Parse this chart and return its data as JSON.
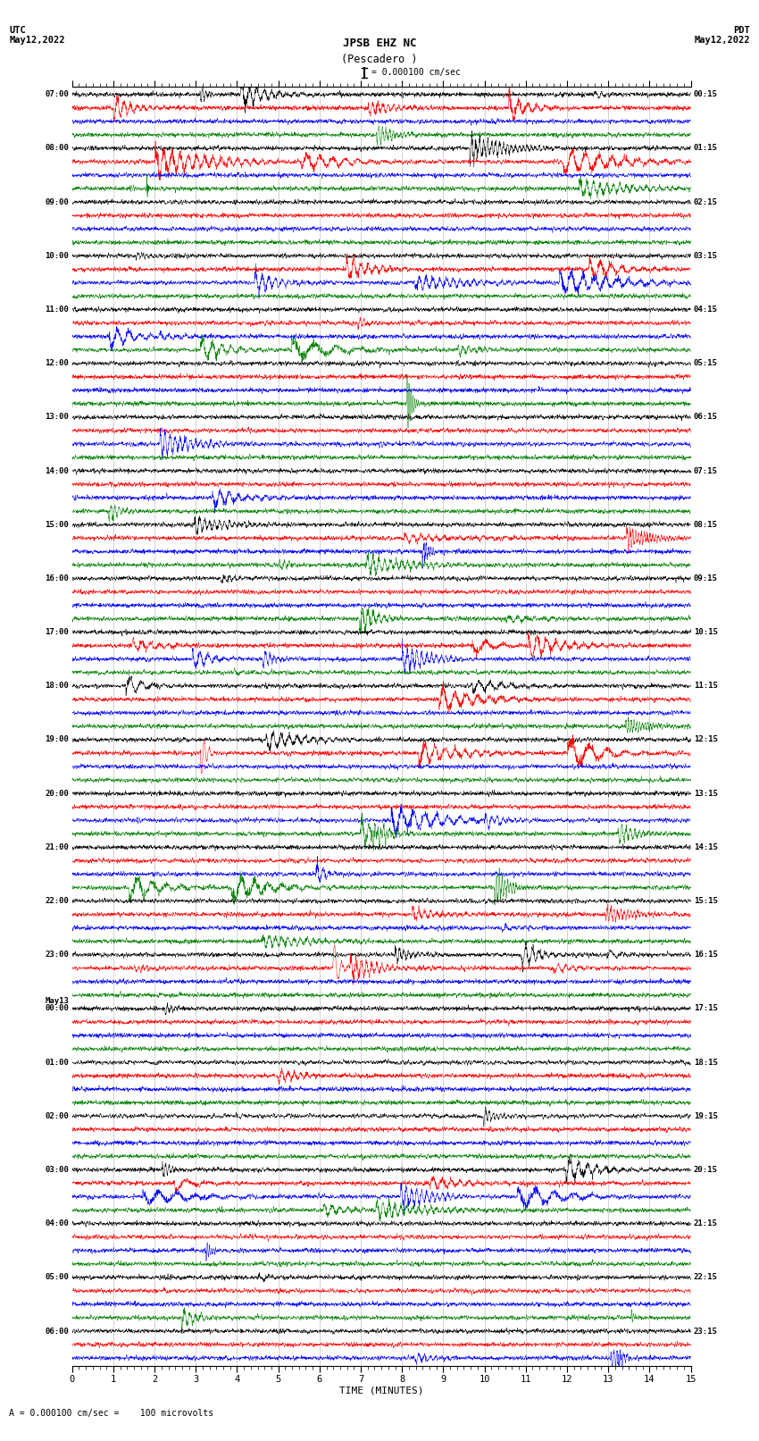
{
  "title_line1": "JPSB EHZ NC",
  "title_line2": "(Pescadero )",
  "scale_label": "= 0.000100 cm/sec",
  "scale_label2": "A = 0.000100 cm/sec =    100 microvolts",
  "xlabel": "TIME (MINUTES)",
  "background_color": "#ffffff",
  "trace_colors": [
    "black",
    "red",
    "blue",
    "green"
  ],
  "utc_hour_labels": [
    "07:00",
    "08:00",
    "09:00",
    "10:00",
    "11:00",
    "12:00",
    "13:00",
    "14:00",
    "15:00",
    "16:00",
    "17:00",
    "18:00",
    "19:00",
    "20:00",
    "21:00",
    "22:00",
    "23:00",
    "May13\n00:00",
    "01:00",
    "02:00",
    "03:00",
    "04:00",
    "05:00",
    "06:00"
  ],
  "pdt_hour_labels": [
    "00:15",
    "01:15",
    "02:15",
    "03:15",
    "04:15",
    "05:15",
    "06:15",
    "07:15",
    "08:15",
    "09:15",
    "10:15",
    "11:15",
    "12:15",
    "13:15",
    "14:15",
    "15:15",
    "16:15",
    "17:15",
    "18:15",
    "19:15",
    "20:15",
    "21:15",
    "22:15",
    "23:15"
  ],
  "n_hours": 24,
  "traces_per_hour": 4,
  "n_minutes": 15,
  "seed": 12345
}
